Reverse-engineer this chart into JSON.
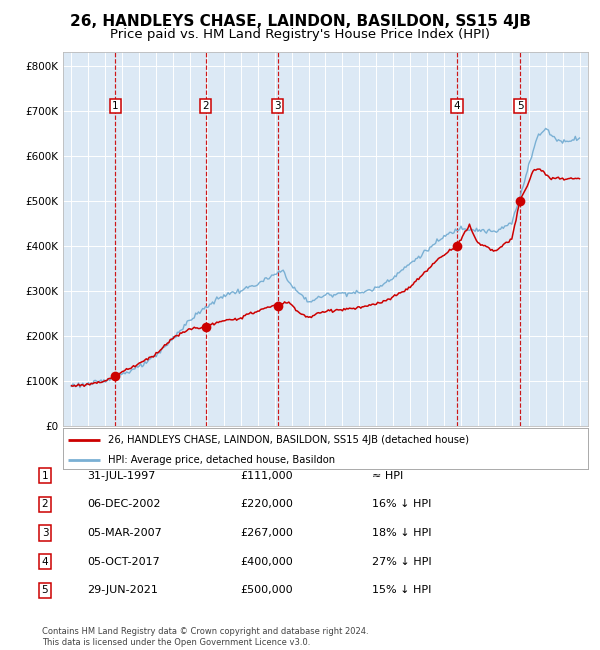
{
  "title": "26, HANDLEYS CHASE, LAINDON, BASILDON, SS15 4JB",
  "subtitle": "Price paid vs. HM Land Registry's House Price Index (HPI)",
  "title_fontsize": 11,
  "subtitle_fontsize": 9.5,
  "bg_color": "#dce9f5",
  "sale_dates_x": [
    1997.58,
    2002.93,
    2007.18,
    2017.76,
    2021.49
  ],
  "sale_prices": [
    111000,
    220000,
    267000,
    400000,
    500000
  ],
  "sale_labels": [
    "1",
    "2",
    "3",
    "4",
    "5"
  ],
  "sale_label_info": [
    {
      "num": "1",
      "date": "31-JUL-1997",
      "price": "£111,000",
      "hpi": "≈ HPI"
    },
    {
      "num": "2",
      "date": "06-DEC-2002",
      "price": "£220,000",
      "hpi": "16% ↓ HPI"
    },
    {
      "num": "3",
      "date": "05-MAR-2007",
      "price": "£267,000",
      "hpi": "18% ↓ HPI"
    },
    {
      "num": "4",
      "date": "05-OCT-2017",
      "price": "£400,000",
      "hpi": "27% ↓ HPI"
    },
    {
      "num": "5",
      "date": "29-JUN-2021",
      "price": "£500,000",
      "hpi": "15% ↓ HPI"
    }
  ],
  "ylim": [
    0,
    830000
  ],
  "xlim": [
    1994.5,
    2025.5
  ],
  "yticks": [
    0,
    100000,
    200000,
    300000,
    400000,
    500000,
    600000,
    700000,
    800000
  ],
  "ytick_labels": [
    "£0",
    "£100K",
    "£200K",
    "£300K",
    "£400K",
    "£500K",
    "£600K",
    "£700K",
    "£800K"
  ],
  "xticks": [
    1995,
    1996,
    1997,
    1998,
    1999,
    2000,
    2001,
    2002,
    2003,
    2004,
    2005,
    2006,
    2007,
    2008,
    2009,
    2010,
    2011,
    2012,
    2013,
    2014,
    2015,
    2016,
    2017,
    2018,
    2019,
    2020,
    2021,
    2022,
    2023,
    2024,
    2025
  ],
  "red_line_color": "#cc0000",
  "blue_line_color": "#7ab0d4",
  "sale_dot_color": "#cc0000",
  "vline_color": "#cc0000",
  "legend_label_red": "26, HANDLEYS CHASE, LAINDON, BASILDON, SS15 4JB (detached house)",
  "legend_label_blue": "HPI: Average price, detached house, Basildon",
  "footer": "Contains HM Land Registry data © Crown copyright and database right 2024.\nThis data is licensed under the Open Government Licence v3.0.",
  "hpi_anchors_x": [
    1995.0,
    1996.0,
    1997.0,
    1998.0,
    1999.0,
    2000.0,
    2001.0,
    2002.0,
    2003.0,
    2004.0,
    2005.0,
    2006.0,
    2007.0,
    2007.5,
    2008.0,
    2009.0,
    2010.0,
    2011.0,
    2012.0,
    2013.0,
    2014.0,
    2015.0,
    2016.0,
    2017.0,
    2018.0,
    2019.0,
    2020.0,
    2021.0,
    2021.5,
    2022.0,
    2022.5,
    2023.0,
    2023.5,
    2024.0,
    2024.5,
    2025.0
  ],
  "hpi_anchors_y": [
    90000,
    92000,
    100000,
    115000,
    130000,
    155000,
    195000,
    235000,
    265000,
    290000,
    300000,
    315000,
    335000,
    345000,
    310000,
    275000,
    290000,
    295000,
    295000,
    305000,
    330000,
    360000,
    390000,
    420000,
    440000,
    435000,
    430000,
    450000,
    510000,
    580000,
    640000,
    660000,
    640000,
    630000,
    635000,
    640000
  ],
  "red_anchors_x": [
    1995.0,
    1996.0,
    1997.0,
    1997.58,
    1998.0,
    1999.0,
    2000.0,
    2001.0,
    2002.0,
    2002.93,
    2003.5,
    2004.0,
    2005.0,
    2006.0,
    2006.5,
    2007.18,
    2007.8,
    2008.5,
    2009.0,
    2010.0,
    2011.0,
    2012.0,
    2013.0,
    2014.0,
    2015.0,
    2016.0,
    2016.5,
    2017.0,
    2017.76,
    2018.0,
    2018.5,
    2019.0,
    2019.5,
    2020.0,
    2020.5,
    2021.0,
    2021.49,
    2022.0,
    2022.3,
    2022.7,
    2023.0,
    2023.3,
    2023.7,
    2024.0,
    2024.5,
    2025.0
  ],
  "red_anchors_y": [
    88000,
    92000,
    100000,
    111000,
    120000,
    138000,
    160000,
    195000,
    215000,
    220000,
    228000,
    232000,
    240000,
    255000,
    262000,
    267000,
    275000,
    250000,
    240000,
    255000,
    258000,
    262000,
    270000,
    285000,
    308000,
    345000,
    365000,
    380000,
    400000,
    415000,
    445000,
    405000,
    398000,
    388000,
    400000,
    415000,
    500000,
    540000,
    570000,
    570000,
    558000,
    548000,
    550000,
    547000,
    550000,
    548000
  ]
}
